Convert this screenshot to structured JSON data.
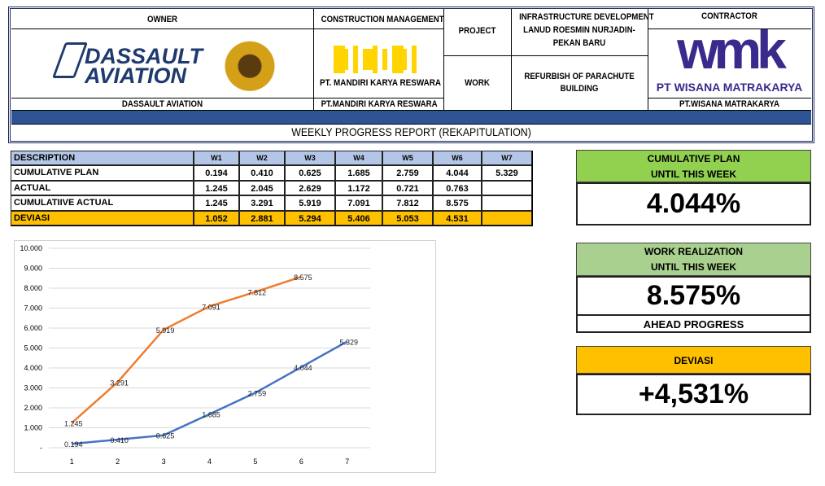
{
  "header": {
    "owner_title": "OWNER",
    "owner_logo": [
      "DASSAULT",
      "AVIATION"
    ],
    "owner_name": "DASSAULT AVIATION",
    "cm_title": "CONSTRUCTION MANAGEMENT",
    "cm_logo": "PT. MANDIRI KARYA RESWARA",
    "cm_name": "PT.MANDIRI KARYA RESWARA",
    "project_label": "PROJECT",
    "project_lines": [
      "INFRASTRUCTURE DEVELOPMENT",
      "LANUD ROESMIN NURJADIN-",
      "PEKAN BARU"
    ],
    "work_label": "WORK",
    "work_lines": [
      "REFURBISH OF PARACHUTE",
      "BUILDING"
    ],
    "contractor_title": "CONTRACTOR",
    "contractor_logo": "wmk",
    "contractor_logo_name": "PT WISANA MATRAKARYA",
    "contractor_name": "PT.WISANA MATRAKARYA",
    "report_title": "WEEKLY PROGRESS REPORT (REKAPITULATION)"
  },
  "table": {
    "columns": [
      "DESCRIPTION",
      "W1",
      "W2",
      "W3",
      "W4",
      "W5",
      "W6",
      "W7"
    ],
    "rows": [
      [
        "CUMULATIVE PLAN",
        "0.194",
        "0.410",
        "0.625",
        "1.685",
        "2.759",
        "4.044",
        "5.329"
      ],
      [
        "ACTUAL",
        "1.245",
        "2.045",
        "2.629",
        "1.172",
        "0.721",
        "0.763",
        null
      ],
      [
        "CUMULATIIVE ACTUAL",
        "1.245",
        "3.291",
        "5.919",
        "7.091",
        "7.812",
        "8.575",
        null
      ],
      [
        "DEVIASI",
        "1.052",
        "2.881",
        "5.294",
        "5.406",
        "5.053",
        "4.531",
        null
      ]
    ]
  },
  "chart_data": {
    "type": "line",
    "categories": [
      "1",
      "2",
      "3",
      "4",
      "5",
      "6",
      "7"
    ],
    "series": [
      {
        "color": "#4472c4",
        "values": [
          0.194,
          0.41,
          0.625,
          1.685,
          2.759,
          4.044,
          5.329
        ],
        "value_labels": [
          "0.194",
          "0.410",
          "0.625",
          "1.685",
          "2.759",
          "4.044",
          "5.329"
        ]
      },
      {
        "color": "#ed7d31",
        "values": [
          1.245,
          3.291,
          5.919,
          7.091,
          7.812,
          8.575,
          null
        ],
        "value_labels": [
          "1.245",
          "3.291",
          "5.919",
          "7.091",
          "7.812",
          "8.575",
          null
        ]
      }
    ],
    "ylim": [
      0,
      10
    ],
    "yticks": [
      {
        "value": 0,
        "label": "-"
      },
      {
        "value": 1,
        "label": "1.000"
      },
      {
        "value": 2,
        "label": "2.000"
      },
      {
        "value": 3,
        "label": "3.000"
      },
      {
        "value": 4,
        "label": "4.000"
      },
      {
        "value": 5,
        "label": "5.000"
      },
      {
        "value": 6,
        "label": "6.000"
      },
      {
        "value": 7,
        "label": "7.000"
      },
      {
        "value": 8,
        "label": "8.000"
      },
      {
        "value": 9,
        "label": "9.000"
      },
      {
        "value": 10,
        "label": "10.000"
      }
    ],
    "grid": true
  },
  "summary": [
    {
      "title_lines": [
        "CUMULATIVE PLAN",
        "UNTIL THIS WEEK"
      ],
      "value": "4.044%"
    },
    {
      "title_lines": [
        "WORK REALIZATION",
        "UNTIL THIS WEEK"
      ],
      "value": "8.575%",
      "footer": "AHEAD PROGRESS"
    },
    {
      "title_lines": [
        "DEVIASI"
      ],
      "value": "+4,531%"
    }
  ]
}
